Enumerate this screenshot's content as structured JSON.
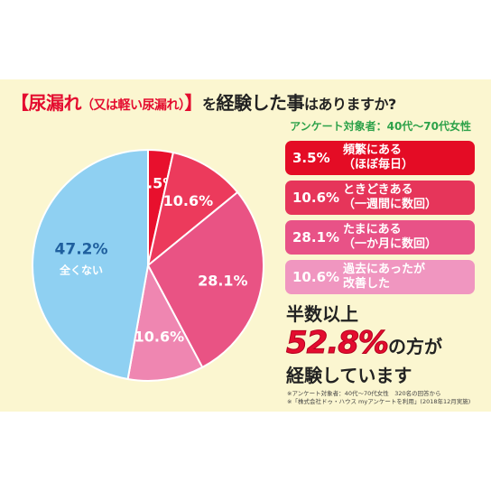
{
  "title": {
    "bracket_open": "【",
    "main": "尿漏れ",
    "paren": "（又は軽い尿漏れ）",
    "bracket_close": "】",
    "wo": "を",
    "big": "経験した事",
    "rest": "はありますか?"
  },
  "subtitle": "アンケート対象者：40代〜70代女性",
  "colors": {
    "slice1": "#e8102d",
    "slice2": "#ec3a5c",
    "slice3": "#e95384",
    "slice4": "#ef86b1",
    "slice5": "#8fd0f2",
    "box1": "#e40c25",
    "box2": "#e6355a",
    "box3": "#e85287",
    "box4": "#f096c0"
  },
  "chart_data": {
    "type": "pie",
    "slices": [
      {
        "label": "3.5%",
        "value": 3.5
      },
      {
        "label": "10.6%",
        "value": 10.6
      },
      {
        "label": "28.1%",
        "value": 28.1
      },
      {
        "label": "10.6%",
        "value": 10.6
      },
      {
        "label": "47.2%",
        "sublabel": "全くない",
        "value": 47.2
      }
    ]
  },
  "legend": [
    {
      "pct": "3.5%",
      "line1": "頻繁にある",
      "line2": "（ほぼ毎日）"
    },
    {
      "pct": "10.6%",
      "line1": "ときどきある",
      "line2": "（一週間に数回）"
    },
    {
      "pct": "28.1%",
      "line1": "たまにある",
      "line2": "（一か月に数回）"
    },
    {
      "pct": "10.6%",
      "line1": "過去にあったが",
      "line2": "改善した"
    }
  ],
  "summary": {
    "line1": "半数以上",
    "big": "52.8%",
    "suffix": "の方が",
    "line3": "経験しています"
  },
  "note": {
    "line1": "※アンケート対象者：40代〜70代女性　320名の回答から",
    "line2": "※「株式会社ドゥ・ハウス myアンケートを利用」(2018年12月実施)"
  }
}
